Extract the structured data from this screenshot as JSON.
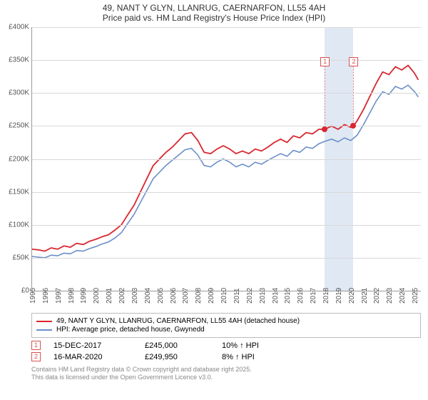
{
  "title": {
    "line1": "49, NANT Y GLYN, LLANRUG, CAERNARFON, LL55 4AH",
    "line2": "Price paid vs. HM Land Registry's House Price Index (HPI)"
  },
  "chart": {
    "type": "line",
    "x_domain": [
      1995,
      2025.5
    ],
    "y_domain": [
      0,
      400000
    ],
    "y_ticks": [
      0,
      50000,
      100000,
      150000,
      200000,
      250000,
      300000,
      350000,
      400000
    ],
    "y_tick_labels": [
      "£0",
      "£50K",
      "£100K",
      "£150K",
      "£200K",
      "£250K",
      "£300K",
      "£350K",
      "£400K"
    ],
    "x_ticks": [
      1995,
      1996,
      1997,
      1998,
      1999,
      2000,
      2001,
      2002,
      2003,
      2004,
      2005,
      2006,
      2007,
      2008,
      2009,
      2010,
      2011,
      2012,
      2013,
      2014,
      2015,
      2016,
      2017,
      2018,
      2019,
      2020,
      2021,
      2022,
      2023,
      2024,
      2025
    ],
    "grid_color": "#d8d8d8",
    "axis_color": "#999999",
    "background_color": "#ffffff",
    "highlight_band": {
      "x_start": 2017.96,
      "x_end": 2020.21,
      "color": "#e0e8f4"
    },
    "series": [
      {
        "id": "price_paid",
        "color": "#d9262f",
        "width": 1.8,
        "label": "49, NANT Y GLYN, LLANRUG, CAERNARFON, LL55 4AH (detached house)",
        "points": [
          [
            1995.0,
            63000
          ],
          [
            1995.5,
            62000
          ],
          [
            1996.0,
            60000
          ],
          [
            1996.5,
            65000
          ],
          [
            1997.0,
            63000
          ],
          [
            1997.5,
            68000
          ],
          [
            1998.0,
            66000
          ],
          [
            1998.5,
            72000
          ],
          [
            1999.0,
            70000
          ],
          [
            1999.5,
            75000
          ],
          [
            2000.0,
            78000
          ],
          [
            2000.5,
            82000
          ],
          [
            2001.0,
            85000
          ],
          [
            2001.5,
            92000
          ],
          [
            2002.0,
            100000
          ],
          [
            2002.5,
            115000
          ],
          [
            2003.0,
            130000
          ],
          [
            2003.5,
            150000
          ],
          [
            2004.0,
            170000
          ],
          [
            2004.5,
            190000
          ],
          [
            2005.0,
            200000
          ],
          [
            2005.5,
            210000
          ],
          [
            2006.0,
            218000
          ],
          [
            2006.5,
            228000
          ],
          [
            2007.0,
            238000
          ],
          [
            2007.5,
            240000
          ],
          [
            2008.0,
            228000
          ],
          [
            2008.5,
            210000
          ],
          [
            2009.0,
            208000
          ],
          [
            2009.5,
            215000
          ],
          [
            2010.0,
            220000
          ],
          [
            2010.5,
            215000
          ],
          [
            2011.0,
            208000
          ],
          [
            2011.5,
            212000
          ],
          [
            2012.0,
            208000
          ],
          [
            2012.5,
            215000
          ],
          [
            2013.0,
            212000
          ],
          [
            2013.5,
            218000
          ],
          [
            2014.0,
            225000
          ],
          [
            2014.5,
            230000
          ],
          [
            2015.0,
            225000
          ],
          [
            2015.5,
            235000
          ],
          [
            2016.0,
            232000
          ],
          [
            2016.5,
            240000
          ],
          [
            2017.0,
            238000
          ],
          [
            2017.5,
            245000
          ],
          [
            2017.96,
            245000
          ],
          [
            2018.5,
            250000
          ],
          [
            2019.0,
            245000
          ],
          [
            2019.5,
            252000
          ],
          [
            2020.0,
            248000
          ],
          [
            2020.21,
            249950
          ],
          [
            2020.5,
            258000
          ],
          [
            2021.0,
            275000
          ],
          [
            2021.5,
            295000
          ],
          [
            2022.0,
            315000
          ],
          [
            2022.5,
            332000
          ],
          [
            2023.0,
            328000
          ],
          [
            2023.5,
            340000
          ],
          [
            2024.0,
            335000
          ],
          [
            2024.5,
            342000
          ],
          [
            2025.0,
            330000
          ],
          [
            2025.3,
            320000
          ]
        ]
      },
      {
        "id": "hpi",
        "color": "#6b8fc9",
        "width": 1.6,
        "label": "HPI: Average price, detached house, Gwynedd",
        "points": [
          [
            1995.0,
            52000
          ],
          [
            1995.5,
            51000
          ],
          [
            1996.0,
            50000
          ],
          [
            1996.5,
            54000
          ],
          [
            1997.0,
            53000
          ],
          [
            1997.5,
            57000
          ],
          [
            1998.0,
            56000
          ],
          [
            1998.5,
            61000
          ],
          [
            1999.0,
            60000
          ],
          [
            1999.5,
            64000
          ],
          [
            2000.0,
            67000
          ],
          [
            2000.5,
            71000
          ],
          [
            2001.0,
            74000
          ],
          [
            2001.5,
            80000
          ],
          [
            2002.0,
            88000
          ],
          [
            2002.5,
            102000
          ],
          [
            2003.0,
            116000
          ],
          [
            2003.5,
            134000
          ],
          [
            2004.0,
            152000
          ],
          [
            2004.5,
            170000
          ],
          [
            2005.0,
            180000
          ],
          [
            2005.5,
            190000
          ],
          [
            2006.0,
            198000
          ],
          [
            2006.5,
            206000
          ],
          [
            2007.0,
            214000
          ],
          [
            2007.5,
            216000
          ],
          [
            2008.0,
            206000
          ],
          [
            2008.5,
            190000
          ],
          [
            2009.0,
            188000
          ],
          [
            2009.5,
            195000
          ],
          [
            2010.0,
            200000
          ],
          [
            2010.5,
            195000
          ],
          [
            2011.0,
            188000
          ],
          [
            2011.5,
            192000
          ],
          [
            2012.0,
            188000
          ],
          [
            2012.5,
            195000
          ],
          [
            2013.0,
            192000
          ],
          [
            2013.5,
            198000
          ],
          [
            2014.0,
            203000
          ],
          [
            2014.5,
            208000
          ],
          [
            2015.0,
            204000
          ],
          [
            2015.5,
            213000
          ],
          [
            2016.0,
            210000
          ],
          [
            2016.5,
            218000
          ],
          [
            2017.0,
            216000
          ],
          [
            2017.5,
            223000
          ],
          [
            2018.0,
            227000
          ],
          [
            2018.5,
            230000
          ],
          [
            2019.0,
            226000
          ],
          [
            2019.5,
            232000
          ],
          [
            2020.0,
            228000
          ],
          [
            2020.5,
            236000
          ],
          [
            2021.0,
            252000
          ],
          [
            2021.5,
            270000
          ],
          [
            2022.0,
            288000
          ],
          [
            2022.5,
            302000
          ],
          [
            2023.0,
            298000
          ],
          [
            2023.5,
            310000
          ],
          [
            2024.0,
            306000
          ],
          [
            2024.5,
            312000
          ],
          [
            2025.0,
            302000
          ],
          [
            2025.3,
            294000
          ]
        ]
      }
    ],
    "sale_markers": [
      {
        "n": "1",
        "x": 2017.96,
        "y": 245000,
        "color": "#d9262f"
      },
      {
        "n": "2",
        "x": 2020.21,
        "y": 249950,
        "color": "#d9262f"
      }
    ],
    "marker_box_top_y": 355000
  },
  "callouts": [
    {
      "n": "1",
      "date": "15-DEC-2017",
      "price": "£245,000",
      "pct": "10% ↑ HPI"
    },
    {
      "n": "2",
      "date": "16-MAR-2020",
      "price": "£249,950",
      "pct": "8% ↑ HPI"
    }
  ],
  "footer": {
    "line1": "Contains HM Land Registry data © Crown copyright and database right 2025.",
    "line2": "This data is licensed under the Open Government Licence v3.0."
  }
}
